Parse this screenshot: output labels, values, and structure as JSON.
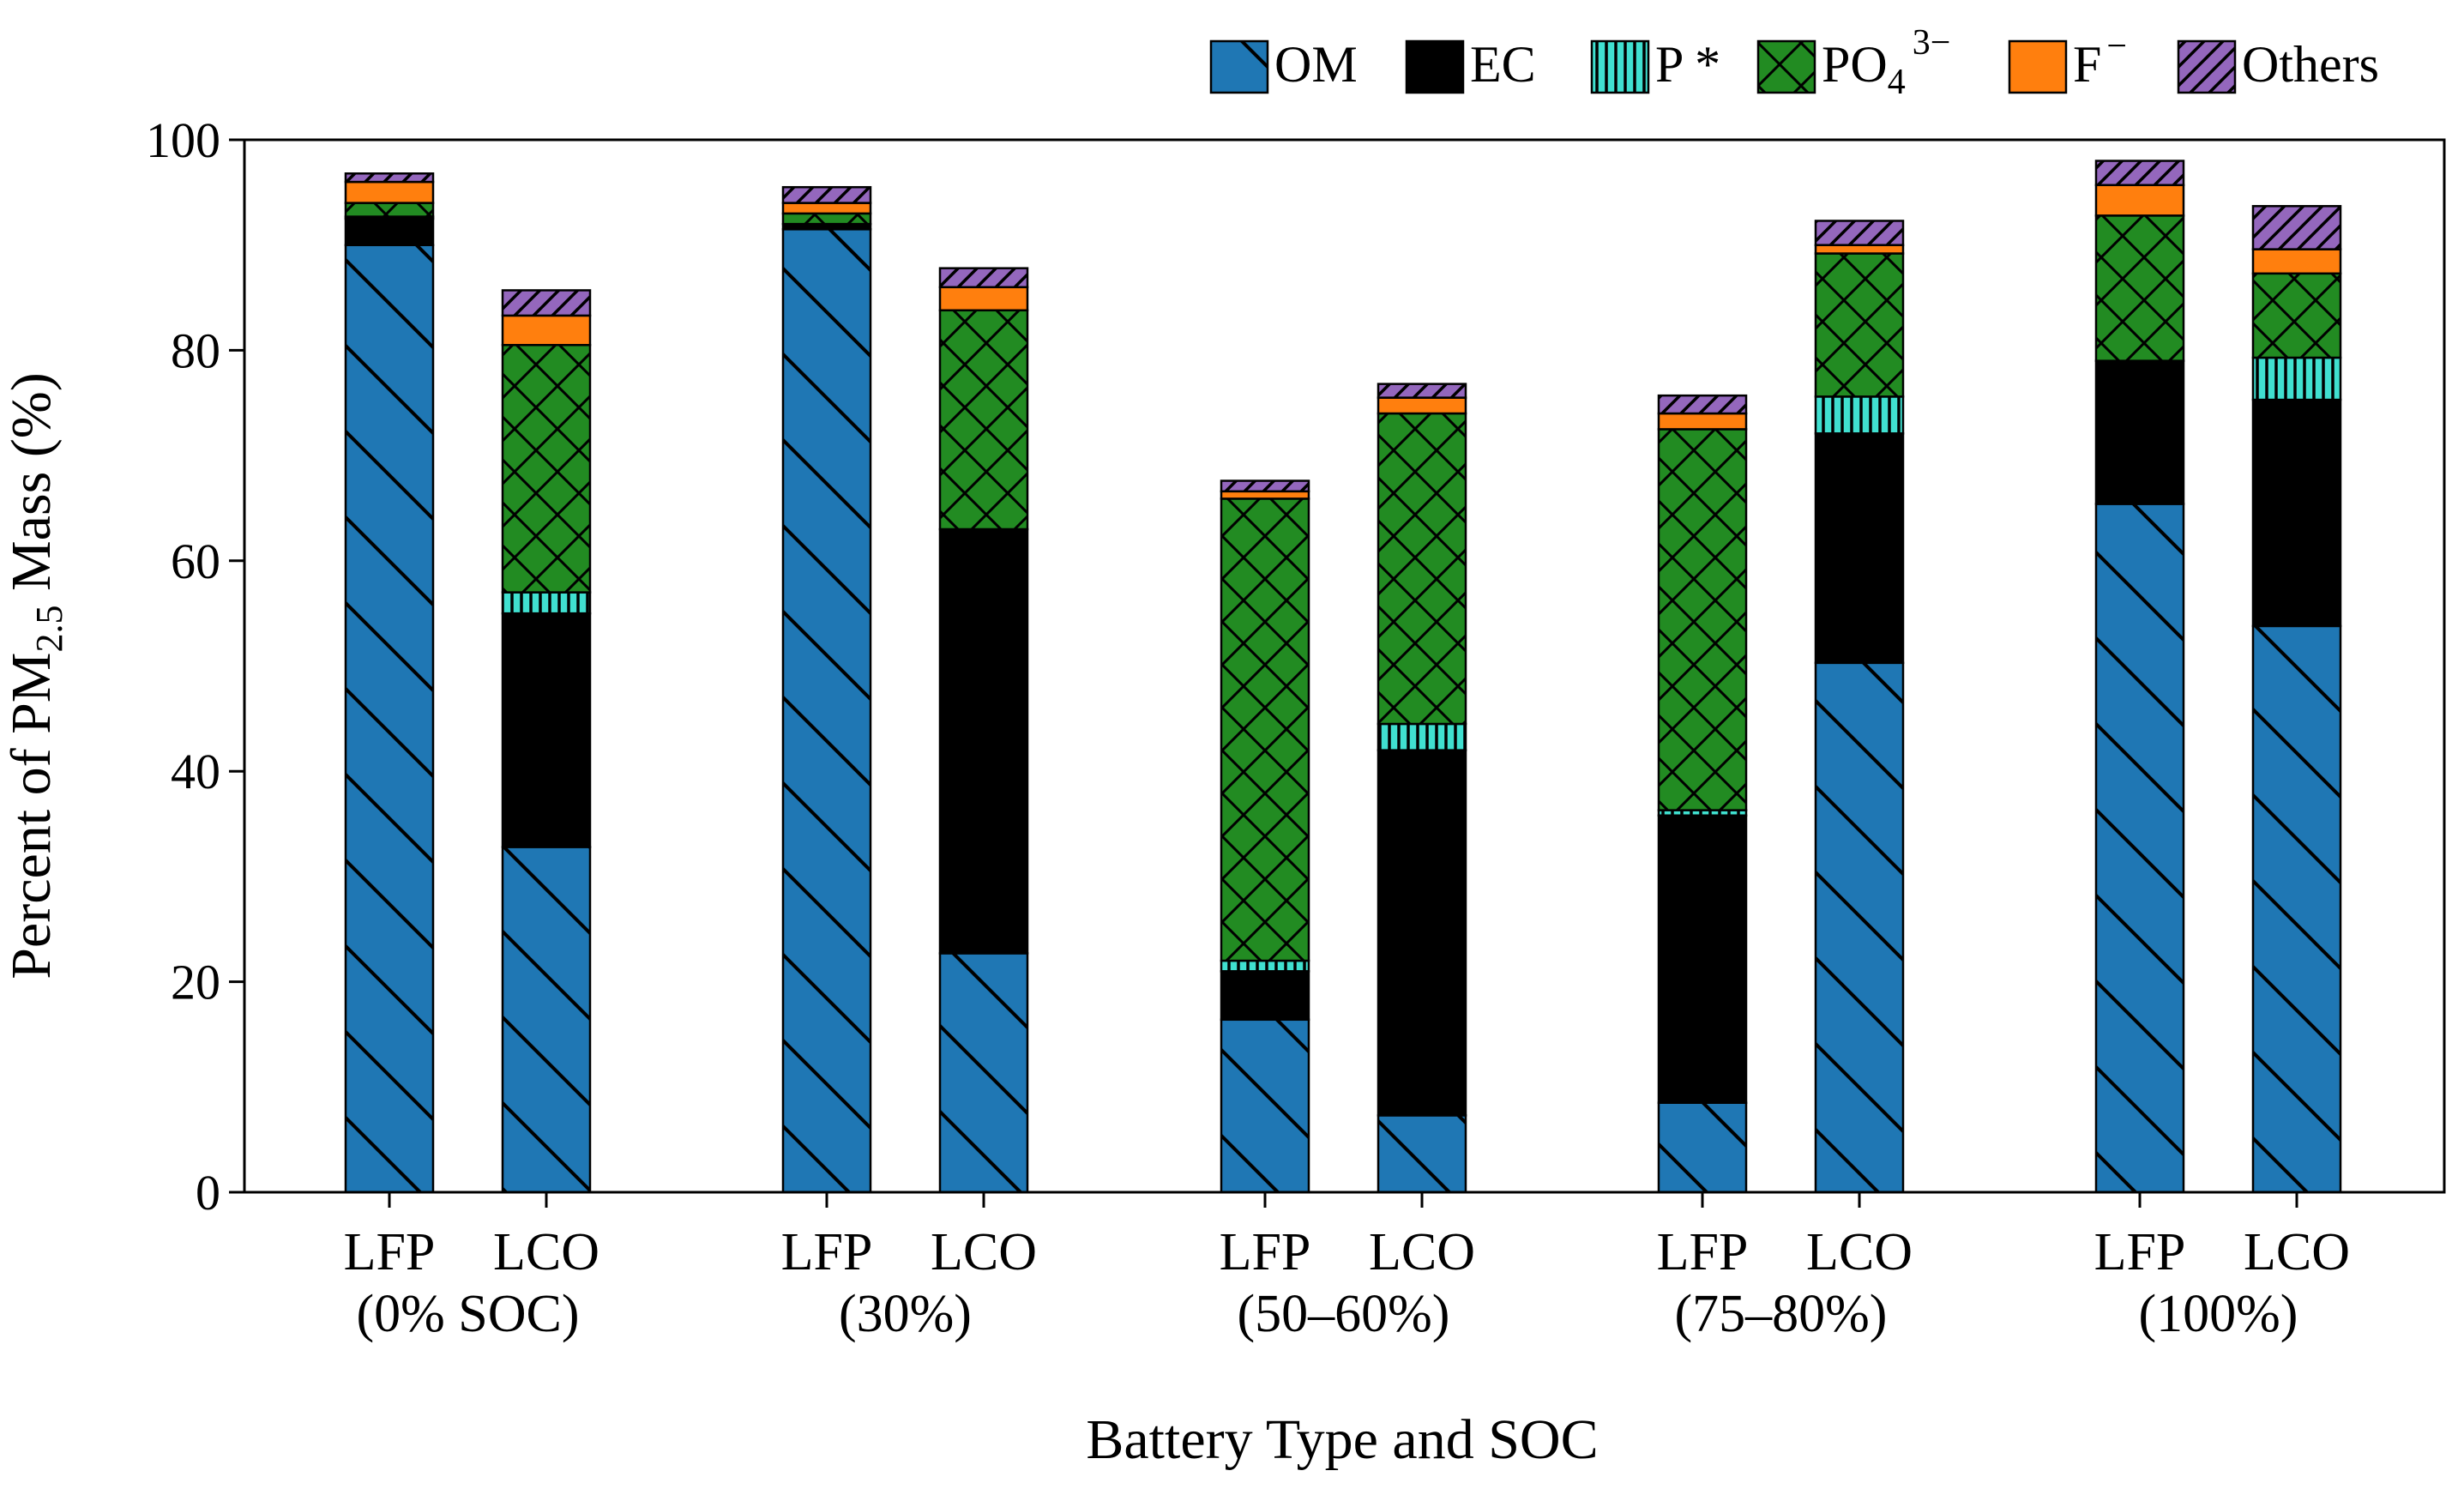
{
  "chart_data": {
    "type": "bar",
    "stacked": true,
    "xlabel": "Battery Type and SOC",
    "ylabel_prefix": "Percent of PM",
    "ylabel_sub": "2.5",
    "ylabel_suffix": " Mass (%)",
    "ylim": [
      0,
      100
    ],
    "yticks": [
      0,
      20,
      40,
      60,
      80,
      100
    ],
    "legend_position": "top-right",
    "groups": [
      {
        "bars": [
          "LFP",
          "LCO"
        ],
        "label": "(0% SOC)"
      },
      {
        "bars": [
          "LFP",
          "LCO"
        ],
        "label": "(30%)"
      },
      {
        "bars": [
          "LFP",
          "LCO"
        ],
        "label": "(50–60%)"
      },
      {
        "bars": [
          "LFP",
          "LCO"
        ],
        "label": "(75–80%)"
      },
      {
        "bars": [
          "LFP",
          "LCO"
        ],
        "label": "(100%)"
      }
    ],
    "categories": [
      "LFP (0% SOC)",
      "LCO (0% SOC)",
      "LFP (30%)",
      "LCO (30%)",
      "LFP (50–60%)",
      "LCO (50–60%)",
      "LFP (75–80%)",
      "LCO (75–80%)",
      "LFP (100%)",
      "LCO (100%)"
    ],
    "series": [
      {
        "name": "OM",
        "color": "#1f77b4",
        "hatch": "backslash",
        "values": [
          90.0,
          32.8,
          91.5,
          22.7,
          16.4,
          7.3,
          8.5,
          50.3,
          65.4,
          53.8
        ]
      },
      {
        "name": "EC",
        "color": "#000000",
        "hatch": "none",
        "values": [
          2.5,
          22.2,
          0.5,
          40.3,
          4.6,
          34.7,
          27.3,
          21.8,
          13.6,
          21.5
        ]
      },
      {
        "name": "P *",
        "color": "#40e0d0",
        "hatch": "vertical",
        "values": [
          0.2,
          2.0,
          0.0,
          0.0,
          1.0,
          2.5,
          0.5,
          3.5,
          0.0,
          4.0
        ]
      },
      {
        "name": "PO4 3−",
        "base": "PO",
        "sub": "4",
        "sup": "3−",
        "color": "#228b22",
        "hatch": "cross",
        "values": [
          1.3,
          23.5,
          1.0,
          20.8,
          43.9,
          29.5,
          36.2,
          13.6,
          13.8,
          8.0
        ]
      },
      {
        "name": "F −",
        "base": "F",
        "sup": "−",
        "color": "#ff7f0e",
        "hatch": "none",
        "values": [
          2.0,
          2.8,
          1.0,
          2.2,
          0.7,
          1.5,
          1.5,
          0.8,
          2.9,
          2.3
        ]
      },
      {
        "name": "Others",
        "color": "#9467bd",
        "hatch": "slash",
        "values": [
          0.8,
          2.4,
          1.5,
          1.8,
          1.0,
          1.3,
          1.7,
          2.3,
          2.3,
          4.1
        ]
      }
    ]
  }
}
